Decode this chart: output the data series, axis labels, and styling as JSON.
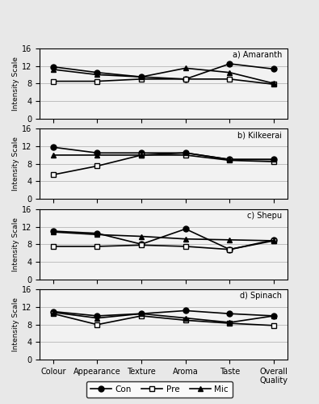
{
  "categories": [
    "Colour",
    "Appearance",
    "Texture",
    "Aroma",
    "Taste",
    "Overall\nQuality"
  ],
  "subplots": [
    {
      "title": "a) Amaranth",
      "Con": [
        11.8,
        10.5,
        9.5,
        9.0,
        12.5,
        11.3
      ],
      "Pre": [
        8.5,
        8.5,
        9.0,
        9.0,
        9.0,
        7.8
      ],
      "Mic": [
        11.2,
        10.0,
        9.5,
        11.5,
        10.5,
        8.0
      ]
    },
    {
      "title": "b) Kilkeerai",
      "Con": [
        11.8,
        10.5,
        10.5,
        10.5,
        9.0,
        9.0
      ],
      "Pre": [
        5.5,
        7.5,
        10.0,
        10.0,
        8.8,
        8.5
      ],
      "Mic": [
        10.0,
        10.0,
        10.0,
        10.5,
        9.0,
        9.0
      ]
    },
    {
      "title": "c) Shepu",
      "Con": [
        11.0,
        10.5,
        8.0,
        11.5,
        6.8,
        9.0
      ],
      "Pre": [
        7.5,
        7.5,
        7.8,
        7.5,
        6.8,
        8.8
      ],
      "Mic": [
        10.8,
        10.2,
        9.8,
        9.2,
        9.0,
        8.8
      ]
    },
    {
      "title": "d) Spinach",
      "Con": [
        11.0,
        10.0,
        10.5,
        11.2,
        10.5,
        10.0
      ],
      "Pre": [
        10.5,
        8.0,
        10.0,
        9.0,
        8.3,
        7.8
      ],
      "Mic": [
        10.8,
        9.5,
        10.5,
        9.5,
        8.5,
        10.0
      ]
    }
  ],
  "ylim": [
    0,
    16
  ],
  "yticks": [
    0,
    4,
    8,
    12,
    16
  ],
  "ylabel": "Intensity Scale",
  "background": "#f0f0f0"
}
